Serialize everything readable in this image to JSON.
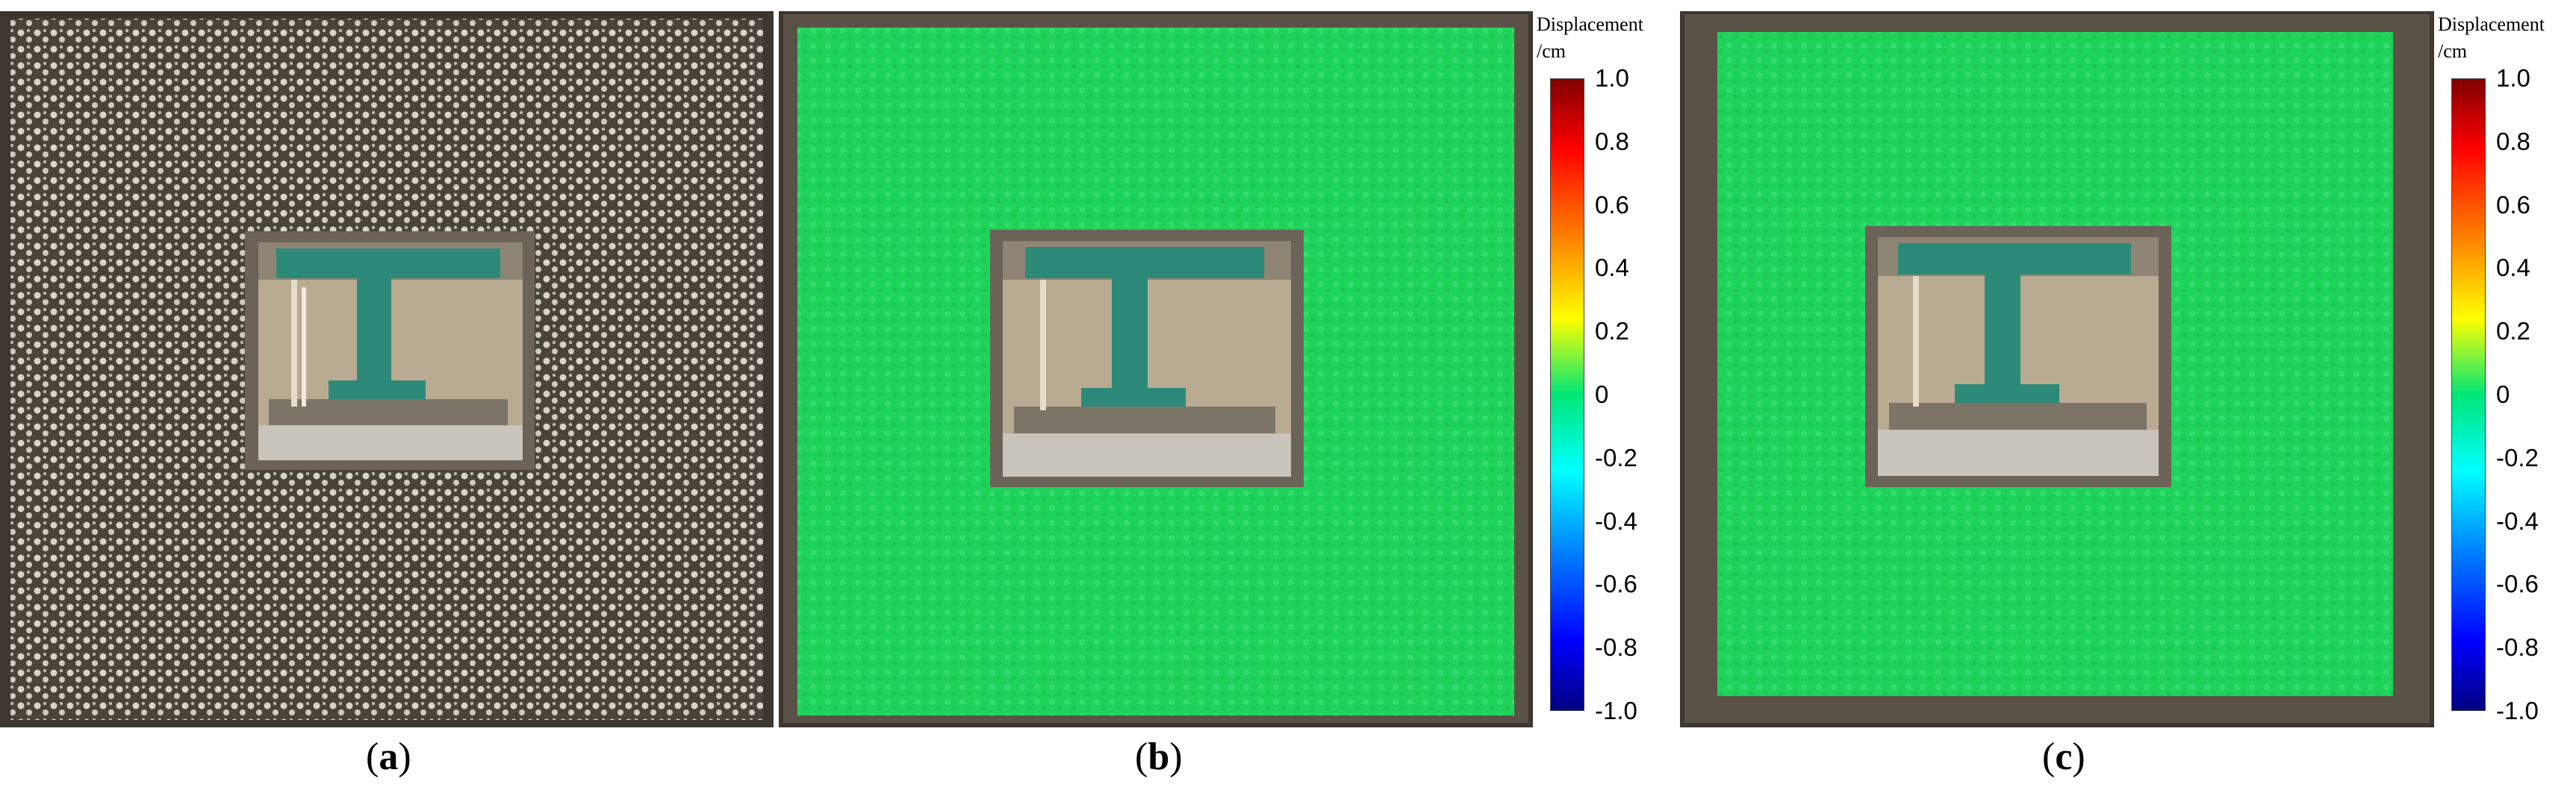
{
  "panels": [
    {
      "id": "a",
      "caption_open": "(",
      "caption_letter": "a",
      "caption_close": ")",
      "overlay": "none"
    },
    {
      "id": "b",
      "caption_open": "(",
      "caption_letter": "b",
      "caption_close": ")",
      "overlay": "displacement"
    },
    {
      "id": "c",
      "caption_open": "(",
      "caption_letter": "c",
      "caption_close": ")",
      "overlay": "displacement"
    }
  ],
  "colorbar": {
    "title_line1": "Displacement",
    "title_line2": "/cm",
    "ticks": [
      "1.0",
      "0.8",
      "0.6",
      "0.4",
      "0.2",
      "0",
      "-0.2",
      "-0.4",
      "-0.6",
      "-0.8",
      "-1.0"
    ],
    "colors": {
      "top": "#800000",
      "zero": "#00e676",
      "bottom": "#000080"
    }
  },
  "colors": {
    "background_wall": "#4a433a",
    "speckle": "#d8d4cc",
    "overlay_green": "#1fd35a",
    "opening_frame": "#6b6358",
    "loading_beam": "#2e8a78"
  }
}
